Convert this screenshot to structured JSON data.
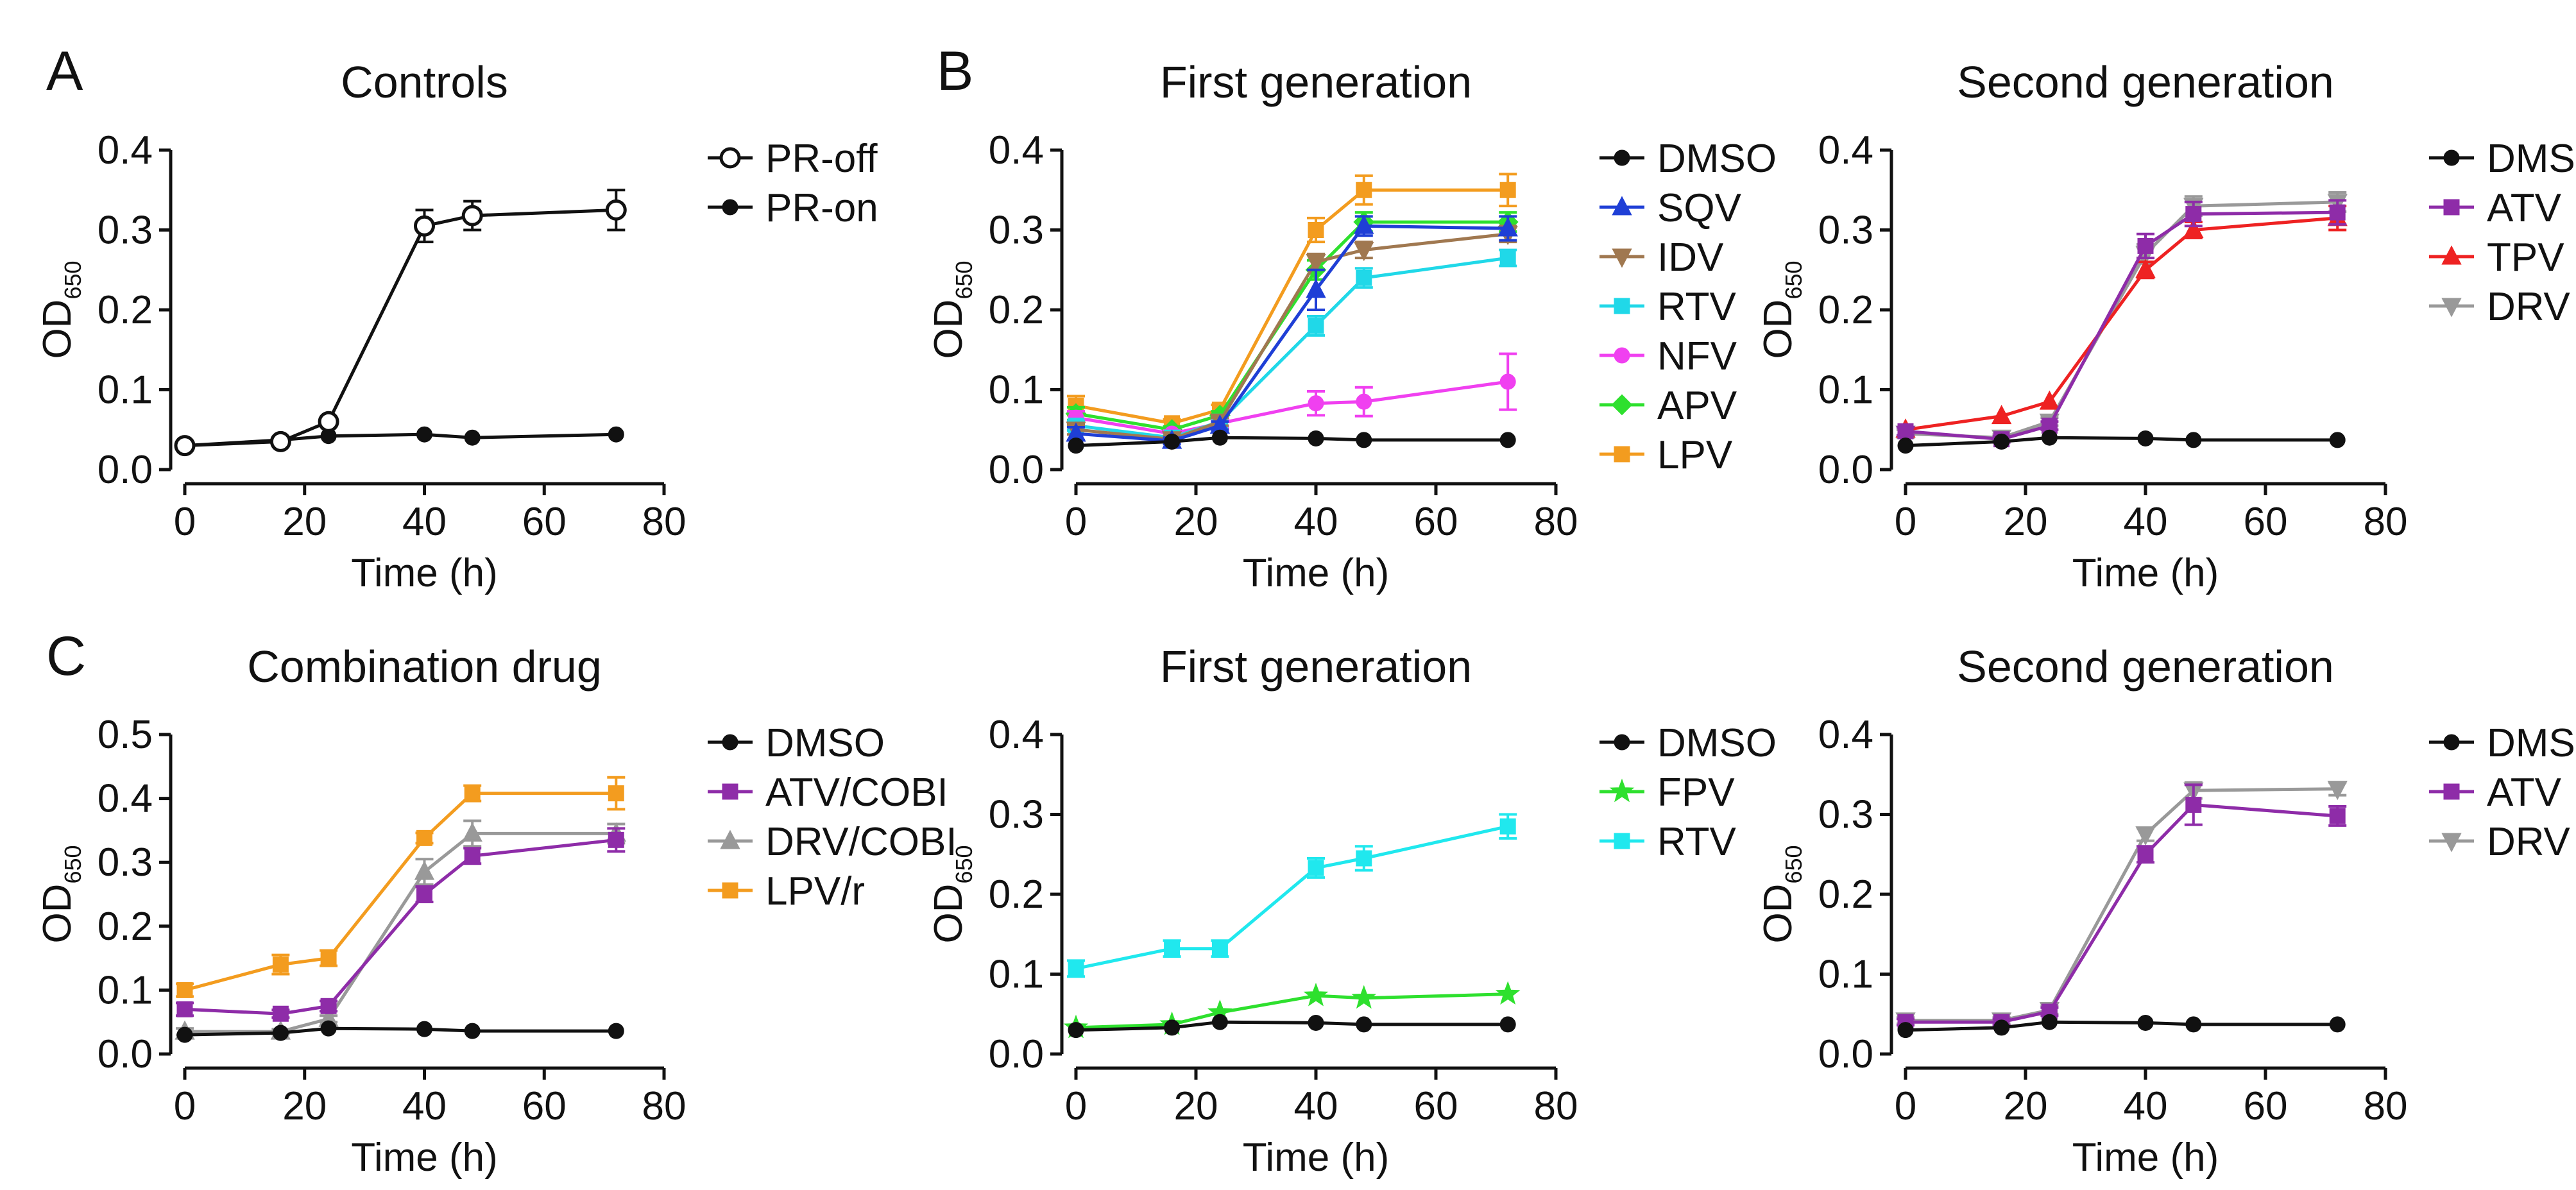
{
  "panels": [
    {
      "letter": "A",
      "chart": 0
    },
    {
      "letter": "B",
      "chart": 1
    },
    {
      "letter": "C",
      "chart": 3
    }
  ],
  "chart_data": [
    {
      "type": "line",
      "title": "Controls",
      "xlabel": "Time (h)",
      "ylabel": {
        "main": "OD",
        "sub": "650"
      },
      "xlim": [
        0,
        80
      ],
      "ylim": [
        0,
        0.4
      ],
      "xticks": [
        "0",
        "20",
        "40",
        "60",
        "80"
      ],
      "yticks": [
        "0.0",
        "0.1",
        "0.2",
        "0.3",
        "0.4"
      ],
      "legend_position": "top-right",
      "series": [
        {
          "name": "PR-off",
          "color": "#111111",
          "marker": "open-circle",
          "x": [
            0,
            16,
            24,
            40,
            48,
            72
          ],
          "y": [
            0.03,
            0.035,
            0.06,
            0.305,
            0.318,
            0.325
          ],
          "err": [
            0,
            0,
            0,
            0.02,
            0.018,
            0.025
          ]
        },
        {
          "name": "PR-on",
          "color": "#111111",
          "marker": "circle",
          "x": [
            0,
            16,
            24,
            40,
            48,
            72
          ],
          "y": [
            0.03,
            0.037,
            0.042,
            0.044,
            0.04,
            0.044
          ],
          "err": [
            0,
            0,
            0,
            0,
            0,
            0
          ]
        }
      ]
    },
    {
      "type": "line",
      "title": "First generation",
      "xlabel": "Time (h)",
      "ylabel": {
        "main": "OD",
        "sub": "650"
      },
      "xlim": [
        0,
        80
      ],
      "ylim": [
        0,
        0.4
      ],
      "xticks": [
        "0",
        "20",
        "40",
        "60",
        "80"
      ],
      "yticks": [
        "0.0",
        "0.1",
        "0.2",
        "0.3",
        "0.4"
      ],
      "legend_position": "top-right",
      "series": [
        {
          "name": "DMSO",
          "color": "#111111",
          "marker": "circle",
          "x": [
            0,
            16,
            24,
            40,
            48,
            72
          ],
          "y": [
            0.03,
            0.035,
            0.04,
            0.039,
            0.037,
            0.037
          ],
          "err": [
            0,
            0,
            0,
            0,
            0,
            0
          ]
        },
        {
          "name": "SQV",
          "color": "#1f3fd6",
          "marker": "triangle-up",
          "x": [
            0,
            16,
            24,
            40,
            48,
            72
          ],
          "y": [
            0.045,
            0.036,
            0.055,
            0.225,
            0.305,
            0.302
          ],
          "err": [
            0.008,
            0.004,
            0.005,
            0.025,
            0.012,
            0.015
          ]
        },
        {
          "name": "IDV",
          "color": "#a07850",
          "marker": "triangle-down",
          "x": [
            0,
            16,
            24,
            40,
            48,
            72
          ],
          "y": [
            0.05,
            0.038,
            0.06,
            0.26,
            0.275,
            0.295
          ],
          "err": [
            0.006,
            0.004,
            0.005,
            0.01,
            0.01,
            0.01
          ]
        },
        {
          "name": "RTV",
          "color": "#20d8e8",
          "marker": "square",
          "x": [
            0,
            16,
            24,
            40,
            48,
            72
          ],
          "y": [
            0.055,
            0.04,
            0.06,
            0.18,
            0.24,
            0.265
          ],
          "err": [
            0.006,
            0.004,
            0.005,
            0.012,
            0.012,
            0.01
          ]
        },
        {
          "name": "NFV",
          "color": "#f040f0",
          "marker": "circle",
          "x": [
            0,
            16,
            24,
            40,
            48,
            72
          ],
          "y": [
            0.065,
            0.045,
            0.058,
            0.083,
            0.085,
            0.11
          ],
          "err": [
            0.008,
            0.004,
            0.005,
            0.015,
            0.018,
            0.035
          ]
        },
        {
          "name": "APV",
          "color": "#2ee02e",
          "marker": "diamond",
          "x": [
            0,
            16,
            24,
            40,
            48,
            72
          ],
          "y": [
            0.07,
            0.05,
            0.068,
            0.25,
            0.31,
            0.31
          ],
          "err": [
            0.008,
            0.004,
            0.005,
            0.012,
            0.012,
            0.012
          ]
        },
        {
          "name": "LPV",
          "color": "#f39c1f",
          "marker": "square",
          "x": [
            0,
            16,
            24,
            40,
            48,
            72
          ],
          "y": [
            0.08,
            0.058,
            0.075,
            0.3,
            0.35,
            0.35
          ],
          "err": [
            0.012,
            0.005,
            0.006,
            0.015,
            0.018,
            0.02
          ]
        }
      ]
    },
    {
      "type": "line",
      "title": "Second generation",
      "xlabel": "Time (h)",
      "ylabel": {
        "main": "OD",
        "sub": "650"
      },
      "xlim": [
        0,
        80
      ],
      "ylim": [
        0,
        0.4
      ],
      "xticks": [
        "0",
        "20",
        "40",
        "60",
        "80"
      ],
      "yticks": [
        "0.0",
        "0.1",
        "0.2",
        "0.3",
        "0.4"
      ],
      "legend_position": "top-right",
      "series": [
        {
          "name": "DMSO",
          "color": "#111111",
          "marker": "circle",
          "x": [
            0,
            16,
            24,
            40,
            48,
            72
          ],
          "y": [
            0.03,
            0.035,
            0.04,
            0.039,
            0.037,
            0.037
          ],
          "err": [
            0,
            0,
            0,
            0,
            0,
            0
          ]
        },
        {
          "name": "ATV",
          "color": "#8e2ca8",
          "marker": "square",
          "x": [
            0,
            16,
            24,
            40,
            48,
            72
          ],
          "y": [
            0.048,
            0.038,
            0.055,
            0.28,
            0.32,
            0.322
          ],
          "err": [
            0.005,
            0.004,
            0.005,
            0.015,
            0.015,
            0.015
          ]
        },
        {
          "name": "TPV",
          "color": "#ee2222",
          "marker": "triangle-up",
          "x": [
            0,
            16,
            24,
            40,
            48,
            72
          ],
          "y": [
            0.05,
            0.067,
            0.085,
            0.25,
            0.3,
            0.315
          ],
          "err": [
            0,
            0,
            0,
            0.01,
            0.01,
            0.015
          ]
        },
        {
          "name": "DRV",
          "color": "#999999",
          "marker": "triangle-down",
          "x": [
            0,
            16,
            24,
            40,
            48,
            72
          ],
          "y": [
            0.045,
            0.04,
            0.06,
            0.27,
            0.33,
            0.335
          ],
          "err": [
            0.005,
            0.004,
            0.005,
            0.012,
            0.012,
            0.012
          ]
        }
      ]
    },
    {
      "type": "line",
      "title": "Combination drug",
      "xlabel": "Time (h)",
      "ylabel": {
        "main": "OD",
        "sub": "650"
      },
      "xlim": [
        0,
        80
      ],
      "ylim": [
        0,
        0.5
      ],
      "xticks": [
        "0",
        "20",
        "40",
        "60",
        "80"
      ],
      "yticks": [
        "0.0",
        "0.1",
        "0.2",
        "0.3",
        "0.4",
        "0.5"
      ],
      "legend_position": "top-right",
      "series": [
        {
          "name": "DMSO",
          "color": "#111111",
          "marker": "circle",
          "x": [
            0,
            16,
            24,
            40,
            48,
            72
          ],
          "y": [
            0.03,
            0.033,
            0.04,
            0.039,
            0.036,
            0.036
          ],
          "err": [
            0,
            0,
            0,
            0,
            0,
            0
          ]
        },
        {
          "name": "ATV/COBI",
          "color": "#8e2ca8",
          "marker": "square",
          "x": [
            0,
            16,
            24,
            40,
            48,
            72
          ],
          "y": [
            0.07,
            0.063,
            0.075,
            0.25,
            0.31,
            0.335
          ],
          "err": [
            0.01,
            0.006,
            0.008,
            0.012,
            0.012,
            0.018
          ]
        },
        {
          "name": "DRV/COBI",
          "color": "#999999",
          "marker": "triangle-up",
          "x": [
            0,
            16,
            24,
            40,
            48,
            72
          ],
          "y": [
            0.035,
            0.035,
            0.055,
            0.285,
            0.345,
            0.345
          ],
          "err": [
            0.005,
            0.004,
            0.005,
            0.02,
            0.02,
            0.015
          ]
        },
        {
          "name": "LPV/r",
          "color": "#f39c1f",
          "marker": "square",
          "x": [
            0,
            16,
            24,
            40,
            48,
            72
          ],
          "y": [
            0.1,
            0.14,
            0.15,
            0.338,
            0.408,
            0.408
          ],
          "err": [
            0.01,
            0.015,
            0.012,
            0.008,
            0.012,
            0.025
          ]
        }
      ]
    },
    {
      "type": "line",
      "title": "First generation",
      "xlabel": "Time (h)",
      "ylabel": {
        "main": "OD",
        "sub": "650"
      },
      "xlim": [
        0,
        80
      ],
      "ylim": [
        0,
        0.4
      ],
      "xticks": [
        "0",
        "20",
        "40",
        "60",
        "80"
      ],
      "yticks": [
        "0.0",
        "0.1",
        "0.2",
        "0.3",
        "0.4"
      ],
      "legend_position": "top-right",
      "series": [
        {
          "name": "DMSO",
          "color": "#111111",
          "marker": "circle",
          "x": [
            0,
            16,
            24,
            40,
            48,
            72
          ],
          "y": [
            0.03,
            0.033,
            0.04,
            0.039,
            0.037,
            0.037
          ],
          "err": [
            0,
            0,
            0,
            0,
            0,
            0
          ]
        },
        {
          "name": "FPV",
          "color": "#2ee02e",
          "marker": "star",
          "x": [
            0,
            16,
            24,
            40,
            48,
            72
          ],
          "y": [
            0.033,
            0.037,
            0.052,
            0.073,
            0.07,
            0.075
          ],
          "err": [
            0,
            0,
            0,
            0,
            0,
            0
          ]
        },
        {
          "name": "RTV",
          "color": "#20e8ee",
          "marker": "square",
          "x": [
            0,
            16,
            24,
            40,
            48,
            72
          ],
          "y": [
            0.107,
            0.132,
            0.132,
            0.233,
            0.245,
            0.285
          ],
          "err": [
            0.01,
            0.01,
            0.01,
            0.012,
            0.015,
            0.015
          ]
        }
      ]
    },
    {
      "type": "line",
      "title": "Second generation",
      "xlabel": "Time (h)",
      "ylabel": {
        "main": "OD",
        "sub": "650"
      },
      "xlim": [
        0,
        80
      ],
      "ylim": [
        0,
        0.4
      ],
      "xticks": [
        "0",
        "20",
        "40",
        "60",
        "80"
      ],
      "yticks": [
        "0.0",
        "0.1",
        "0.2",
        "0.3",
        "0.4"
      ],
      "legend_position": "top-right",
      "series": [
        {
          "name": "DMSO",
          "color": "#111111",
          "marker": "circle",
          "x": [
            0,
            16,
            24,
            40,
            48,
            72
          ],
          "y": [
            0.03,
            0.033,
            0.04,
            0.039,
            0.037,
            0.037
          ],
          "err": [
            0,
            0,
            0,
            0,
            0,
            0
          ]
        },
        {
          "name": "ATV",
          "color": "#8e2ca8",
          "marker": "square",
          "x": [
            0,
            16,
            24,
            40,
            48,
            72
          ],
          "y": [
            0.04,
            0.04,
            0.053,
            0.25,
            0.312,
            0.298
          ],
          "err": [
            0.004,
            0.004,
            0.005,
            0.01,
            0.025,
            0.012
          ]
        },
        {
          "name": "DRV",
          "color": "#999999",
          "marker": "triangle-down",
          "x": [
            0,
            16,
            24,
            40,
            48,
            72
          ],
          "y": [
            0.042,
            0.042,
            0.055,
            0.275,
            0.33,
            0.332
          ],
          "err": [
            0.004,
            0.004,
            0.005,
            0.008,
            0.01,
            0.008
          ]
        }
      ]
    }
  ]
}
